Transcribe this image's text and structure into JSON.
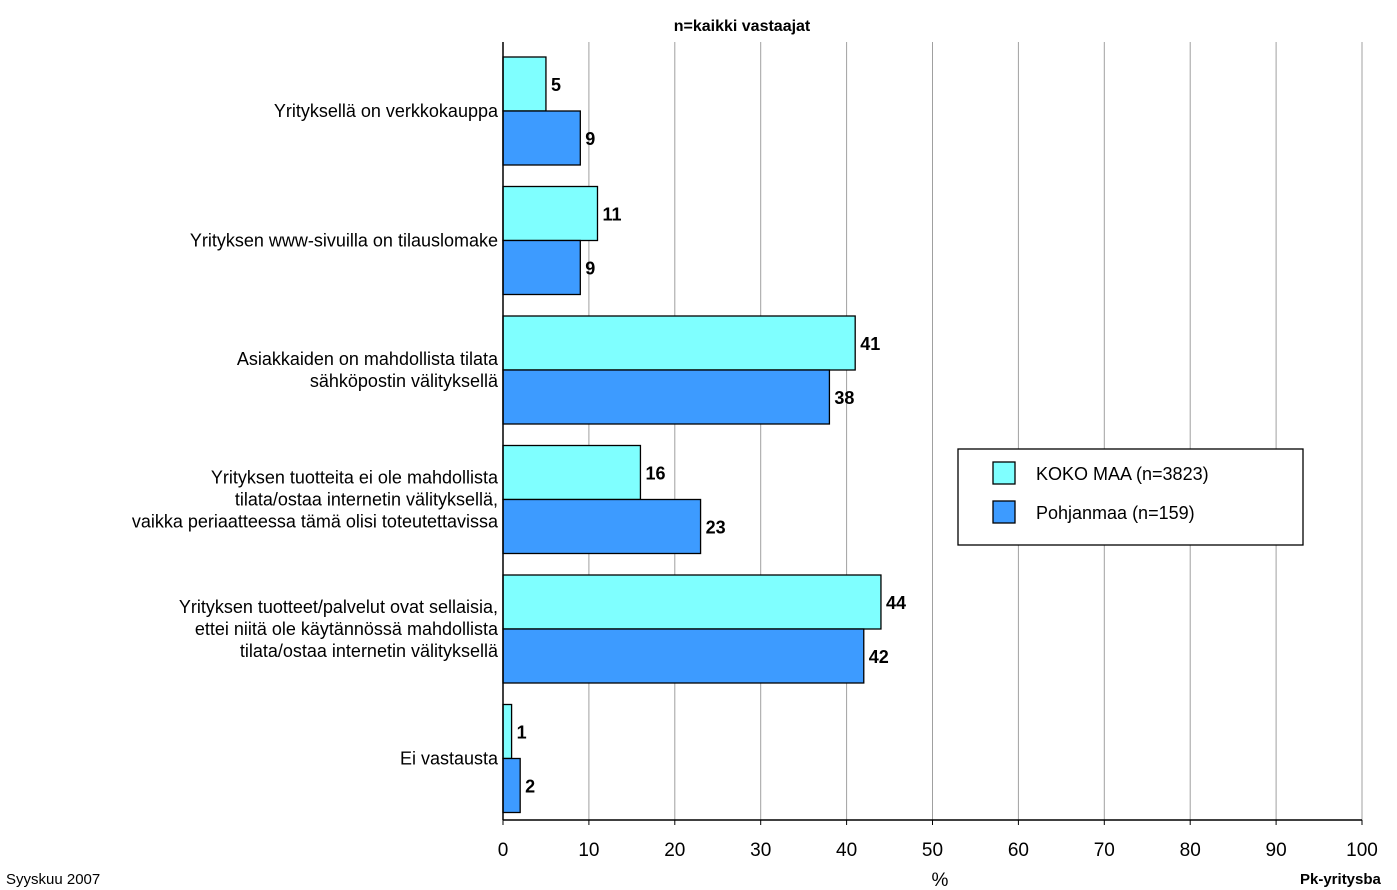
{
  "footer": {
    "left": "Syyskuu 2007",
    "right": "Pk-yritysba"
  },
  "chart_data": {
    "type": "bar",
    "orientation": "horizontal",
    "title": "n=kaikki vastaajat",
    "xlabel": "%",
    "ylabel": "",
    "xlim": [
      0,
      100
    ],
    "xticks": [
      0,
      10,
      20,
      30,
      40,
      50,
      60,
      70,
      80,
      90,
      100
    ],
    "grid": true,
    "legend_position": "right",
    "categories": [
      [
        "Yrityksellä on verkkokauppa"
      ],
      [
        "Yrityksen www-sivuilla on tilauslomake"
      ],
      [
        "Asiakkaiden on mahdollista tilata",
        "sähköpostin välityksellä"
      ],
      [
        "Yrityksen tuotteita ei ole mahdollista",
        "tilata/ostaa internetin välityksellä,",
        "vaikka periaatteessa tämä olisi toteutettavissa"
      ],
      [
        "Yrityksen tuotteet/palvelut ovat sellaisia,",
        "ettei niitä ole käytännössä mahdollista",
        "tilata/ostaa internetin välityksellä"
      ],
      [
        "Ei vastausta"
      ]
    ],
    "series": [
      {
        "name": "KOKO MAA (n=3823)",
        "color": "#7fffff",
        "values": [
          5,
          11,
          41,
          16,
          44,
          1
        ]
      },
      {
        "name": "Pohjanmaa (n=159)",
        "color": "#3d9bff",
        "values": [
          9,
          9,
          38,
          23,
          42,
          2
        ]
      }
    ]
  }
}
